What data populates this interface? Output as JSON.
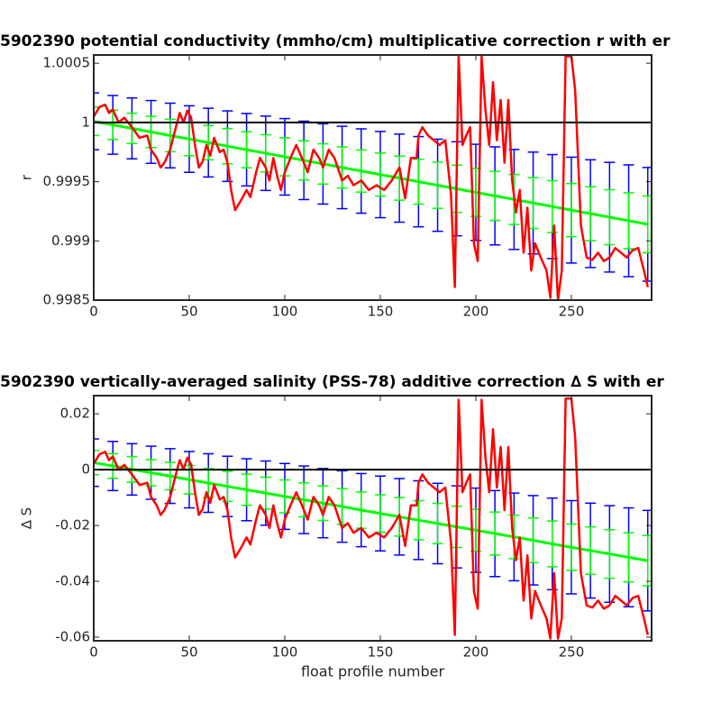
{
  "chart_data": [
    {
      "type": "errorband",
      "title": "5902390 potential conductivity (mmho/cm) multiplicative correction r with er",
      "ylabel": "r",
      "xlim": [
        0,
        292
      ],
      "xticks": [
        0,
        50,
        100,
        150,
        200,
        250
      ],
      "ylim": [
        0.9985,
        1.00057
      ],
      "yticks": [
        1.0005,
        1,
        0.9995,
        0.999,
        0.9985
      ],
      "hline": 1,
      "hline_color": "#000000",
      "x": [
        0,
        10,
        20,
        30,
        40,
        50,
        60,
        70,
        80,
        90,
        100,
        110,
        120,
        130,
        140,
        150,
        160,
        170,
        180,
        190,
        200,
        210,
        220,
        230,
        240,
        250,
        260,
        270,
        280,
        290
      ],
      "series": [
        {
          "color": "#0000ff",
          "values": [
            1.00001,
            0.99998,
            0.99995,
            0.99992,
            0.99989,
            0.99986,
            0.99983,
            0.9998,
            0.99977,
            0.99974,
            0.99971,
            0.99968,
            0.99965,
            0.99962,
            0.99959,
            0.99956,
            0.99953,
            0.9995,
            0.99947,
            0.99944,
            0.99941,
            0.99938,
            0.99935,
            0.99932,
            0.99929,
            0.99926,
            0.99923,
            0.9992,
            0.99917,
            0.99914
          ],
          "errors": [
            0.00024,
            0.000248,
            0.000257,
            0.000265,
            0.000273,
            0.000281,
            0.00029,
            0.000298,
            0.000306,
            0.000314,
            0.000323,
            0.000331,
            0.000339,
            0.000348,
            0.000356,
            0.000364,
            0.000372,
            0.000381,
            0.000389,
            0.000397,
            0.000406,
            0.000414,
            0.000422,
            0.00043,
            0.000439,
            0.000447,
            0.000455,
            0.000463,
            0.000472,
            0.00048
          ]
        },
        {
          "color": "#00ff00",
          "values": [
            1.00001,
            0.99998,
            0.99995,
            0.99992,
            0.99989,
            0.99986,
            0.99983,
            0.9998,
            0.99977,
            0.99974,
            0.99971,
            0.99968,
            0.99965,
            0.99962,
            0.99959,
            0.99956,
            0.99953,
            0.9995,
            0.99947,
            0.99944,
            0.99941,
            0.99938,
            0.99935,
            0.99932,
            0.99929,
            0.99926,
            0.99923,
            0.9992,
            0.99917,
            0.99914
          ],
          "errors": [
            0.00012,
            0.000124,
            0.000128,
            0.000132,
            0.000137,
            0.000141,
            0.000145,
            0.000149,
            0.000153,
            0.000157,
            0.000161,
            0.000166,
            0.00017,
            0.000174,
            0.000178,
            0.000182,
            0.000186,
            0.00019,
            0.000195,
            0.000199,
            0.000203,
            0.000207,
            0.000211,
            0.000215,
            0.000219,
            0.000224,
            0.000228,
            0.000232,
            0.000236,
            0.00024
          ]
        },
        {
          "color": "#ff0000",
          "x": [
            0,
            3,
            6,
            8,
            10,
            13,
            16,
            20,
            24,
            28,
            30,
            33,
            35,
            37,
            40,
            43,
            45,
            47,
            49,
            51,
            53,
            55,
            57,
            59,
            61,
            63,
            66,
            68,
            70,
            72,
            74,
            77,
            80,
            82,
            85,
            87,
            90,
            92,
            94,
            96,
            98,
            100,
            103,
            106,
            109,
            112,
            115,
            118,
            120,
            123,
            126,
            130,
            133,
            136,
            140,
            144,
            148,
            152,
            156,
            160,
            163,
            166,
            169,
            170,
            172,
            175,
            178,
            181,
            184,
            187,
            189,
            191,
            193,
            195,
            197,
            199,
            201,
            203,
            205,
            207,
            209,
            211,
            213,
            215,
            217,
            219,
            221,
            223,
            225,
            227,
            229,
            231,
            234,
            237,
            239,
            241,
            243,
            245,
            247,
            250,
            252,
            255,
            258,
            261,
            264,
            267,
            270,
            273,
            276,
            279,
            282,
            285,
            288,
            290
          ],
          "values": [
            1.00005,
            1.00013,
            1.00015,
            1.00008,
            1.00011,
            1,
            1.00004,
            0.99996,
            0.99987,
            0.99989,
            0.99977,
            0.9997,
            0.99962,
            0.99966,
            0.99977,
            0.99996,
            1.00008,
            1,
            1.0001,
            1.00004,
            0.99981,
            0.99962,
            0.99967,
            0.99981,
            0.99972,
            0.99987,
            0.99975,
            0.99977,
            0.99966,
            0.99942,
            0.99926,
            0.99934,
            0.99943,
            0.99937,
            0.99958,
            0.9997,
            0.99962,
            0.99951,
            0.9997,
            0.99955,
            0.99943,
            0.99958,
            0.9997,
            0.99981,
            0.9997,
            0.99958,
            0.99977,
            0.9997,
            0.99962,
            0.99977,
            0.9997,
            0.99951,
            0.99955,
            0.99947,
            0.99951,
            0.99943,
            0.99947,
            0.99943,
            0.99951,
            0.99962,
            0.99936,
            0.9997,
            0.9997,
            0.99989,
            0.99996,
            0.99989,
            0.99985,
            0.99981,
            0.99985,
            0.99939,
            0.99861,
            1.00056,
            0.99981,
            0.99989,
            0.99996,
            0.99898,
            0.99883,
            1.00056,
            1.00011,
            0.99981,
            1.00034,
            0.99985,
            1.00019,
            0.99966,
            1.00019,
            0.99951,
            0.99924,
            0.99943,
            0.9989,
            0.99928,
            0.99875,
            0.99898,
            0.99886,
            0.99875,
            0.99852,
            0.99913,
            0.9985,
            0.99875,
            1.00056,
            1.00056,
            1.00027,
            0.99913,
            0.99886,
            0.99884,
            0.9989,
            0.99883,
            0.99886,
            0.99894,
            0.9989,
            0.99886,
            0.99892,
            0.99894,
            0.99875,
            0.99861
          ]
        }
      ]
    },
    {
      "type": "errorband",
      "title": "5902390 vertically-averaged salinity (PSS-78) additive correction ∆ S with er",
      "ylabel": "∆ S",
      "xlabel": "float profile number",
      "xlim": [
        0,
        292
      ],
      "xticks": [
        0,
        50,
        100,
        150,
        200,
        250
      ],
      "ylim": [
        -0.0613,
        0.0265
      ],
      "yticks": [
        0.02,
        0,
        -0.02,
        -0.04,
        -0.06
      ],
      "hline": 0,
      "hline_color": "#000000",
      "x": [
        0,
        10,
        20,
        30,
        40,
        50,
        60,
        70,
        80,
        90,
        100,
        110,
        120,
        130,
        140,
        150,
        160,
        170,
        180,
        190,
        200,
        210,
        220,
        230,
        240,
        250,
        260,
        270,
        280,
        290
      ],
      "series": [
        {
          "color": "#0000ff",
          "values": [
            0.0025,
            0.0013,
            0.0001,
            -0.0011,
            -0.0023,
            -0.0036,
            -0.0048,
            -0.006,
            -0.0072,
            -0.0084,
            -0.0096,
            -0.0108,
            -0.012,
            -0.0132,
            -0.0145,
            -0.0157,
            -0.0169,
            -0.0181,
            -0.0193,
            -0.0205,
            -0.0217,
            -0.0229,
            -0.0241,
            -0.0253,
            -0.0266,
            -0.0278,
            -0.029,
            -0.0302,
            -0.0314,
            -0.0326
          ],
          "errors": [
            0.0085,
            0.0088,
            0.0092,
            0.0095,
            0.0098,
            0.0101,
            0.0105,
            0.0108,
            0.0111,
            0.0115,
            0.0118,
            0.0121,
            0.0124,
            0.0128,
            0.0131,
            0.0134,
            0.0137,
            0.0141,
            0.0144,
            0.0147,
            0.0151,
            0.0154,
            0.0157,
            0.016,
            0.0164,
            0.0167,
            0.017,
            0.0173,
            0.0177,
            0.018
          ]
        },
        {
          "color": "#00ff00",
          "values": [
            0.0025,
            0.0013,
            0.0001,
            -0.0011,
            -0.0023,
            -0.0036,
            -0.0048,
            -0.006,
            -0.0072,
            -0.0084,
            -0.0096,
            -0.0108,
            -0.012,
            -0.0132,
            -0.0145,
            -0.0157,
            -0.0169,
            -0.0181,
            -0.0193,
            -0.0205,
            -0.0217,
            -0.0229,
            -0.0241,
            -0.0253,
            -0.0266,
            -0.0278,
            -0.029,
            -0.0302,
            -0.0314,
            -0.0326
          ],
          "errors": [
            0.0043,
            0.0044,
            0.0046,
            0.0047,
            0.0049,
            0.0051,
            0.0052,
            0.0054,
            0.0056,
            0.0057,
            0.0059,
            0.0061,
            0.0062,
            0.0064,
            0.0065,
            0.0067,
            0.0069,
            0.007,
            0.0072,
            0.0074,
            0.0075,
            0.0077,
            0.0078,
            0.008,
            0.0082,
            0.0083,
            0.0085,
            0.0087,
            0.0088,
            0.009
          ]
        },
        {
          "color": "#ff0000",
          "x": [
            0,
            3,
            6,
            8,
            10,
            13,
            16,
            20,
            24,
            28,
            30,
            33,
            35,
            37,
            40,
            43,
            45,
            47,
            49,
            51,
            53,
            55,
            57,
            59,
            61,
            63,
            66,
            68,
            70,
            72,
            74,
            77,
            80,
            82,
            85,
            87,
            90,
            92,
            94,
            96,
            98,
            100,
            103,
            106,
            109,
            112,
            115,
            118,
            120,
            123,
            126,
            130,
            133,
            136,
            140,
            144,
            148,
            152,
            156,
            160,
            163,
            166,
            169,
            170,
            172,
            175,
            178,
            181,
            184,
            187,
            189,
            191,
            193,
            195,
            197,
            199,
            201,
            203,
            205,
            207,
            209,
            211,
            213,
            215,
            217,
            219,
            221,
            223,
            225,
            227,
            229,
            231,
            234,
            237,
            239,
            241,
            243,
            245,
            247,
            250,
            252,
            255,
            258,
            261,
            264,
            267,
            270,
            273,
            276,
            279,
            282,
            285,
            288,
            290
          ],
          "values": [
            0.0021,
            0.0055,
            0.0064,
            0.0034,
            0.0047,
            0,
            0.0017,
            -0.0017,
            -0.0055,
            -0.0047,
            -0.0098,
            -0.0128,
            -0.0162,
            -0.0145,
            -0.0098,
            -0.0017,
            0.0034,
            0,
            0.0043,
            0.0017,
            -0.0081,
            -0.0162,
            -0.0141,
            -0.0081,
            -0.0119,
            -0.0055,
            -0.0107,
            -0.0098,
            -0.0145,
            -0.0247,
            -0.0315,
            -0.0281,
            -0.0243,
            -0.0268,
            -0.0179,
            -0.0128,
            -0.0162,
            -0.0209,
            -0.0128,
            -0.0192,
            -0.0243,
            -0.0179,
            -0.0128,
            -0.0081,
            -0.0128,
            -0.0179,
            -0.0098,
            -0.0128,
            -0.0162,
            -0.0098,
            -0.0128,
            -0.0209,
            -0.0192,
            -0.0226,
            -0.0209,
            -0.0243,
            -0.0226,
            -0.0243,
            -0.0209,
            -0.0162,
            -0.0273,
            -0.0128,
            -0.0128,
            -0.0047,
            -0.0017,
            -0.0047,
            -0.0064,
            -0.0081,
            -0.0064,
            -0.026,
            -0.0592,
            0.025,
            -0.0081,
            -0.0047,
            -0.0017,
            -0.0435,
            -0.0498,
            0.025,
            0.0047,
            -0.0081,
            0.0145,
            -0.0064,
            0.0081,
            -0.0145,
            0.0081,
            -0.0209,
            -0.0324,
            -0.0243,
            -0.0469,
            -0.0307,
            -0.0533,
            -0.0435,
            -0.0486,
            -0.0533,
            -0.0605,
            -0.0371,
            -0.0605,
            -0.0533,
            0.0255,
            0.0255,
            0.0115,
            -0.0371,
            -0.0486,
            -0.0494,
            -0.0469,
            -0.0498,
            -0.0486,
            -0.0452,
            -0.0469,
            -0.0486,
            -0.046,
            -0.0452,
            -0.0533,
            -0.0592
          ]
        }
      ]
    }
  ]
}
